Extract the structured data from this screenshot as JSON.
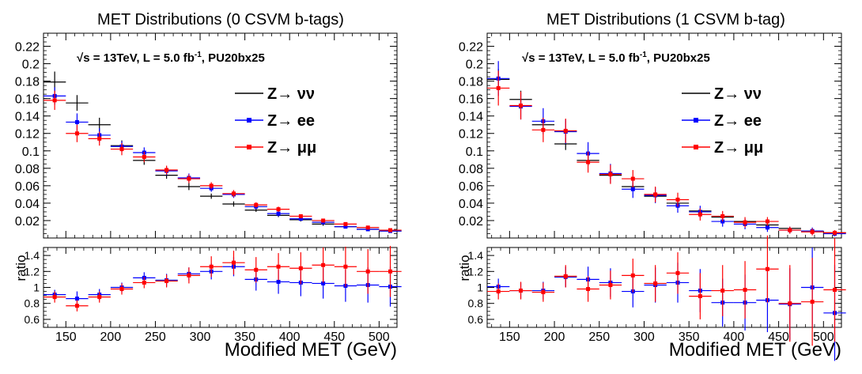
{
  "figure": {
    "xlabel": "Modified MET (GeV)"
  },
  "chart_data": [
    {
      "type": "scatter",
      "title": "MET Distributions (0 CSVM b-tags)",
      "annotation": {
        "main": "√s = 13TeV, L = 5.0 fb",
        "sup": "-1",
        "tail": ", PU20bx25"
      },
      "xlabel": "Modified MET (GeV)",
      "xlim": [
        125,
        520
      ],
      "x_ticks": [
        "150",
        "200",
        "250",
        "300",
        "350",
        "400",
        "450",
        "500"
      ],
      "upper": {
        "ylim": [
          0,
          0.235
        ],
        "y_ticks": [
          "0.02",
          "0.04",
          "0.06",
          "0.08",
          "0.1",
          "0.12",
          "0.14",
          "0.16",
          "0.18",
          "0.2",
          "0.22"
        ],
        "legend_position": "top-right",
        "x": [
          137.5,
          162.5,
          187.5,
          212.5,
          237.5,
          262.5,
          287.5,
          312.5,
          337.5,
          362.5,
          387.5,
          412.5,
          437.5,
          462.5,
          487.5,
          512.5
        ],
        "series": [
          {
            "name": "Z→ νν",
            "color": "#000000",
            "values": [
              0.179,
              0.155,
              0.13,
              0.106,
              0.089,
              0.072,
              0.059,
              0.048,
              0.039,
              0.032,
              0.026,
              0.021,
              0.016,
              0.013,
              0.01,
              0.008
            ],
            "errors": [
              0.012,
              0.009,
              0.008,
              0.006,
              0.005,
              0.004,
              0.004,
              0.003,
              0.003,
              0.002,
              0.002,
              0.002,
              0.002,
              0.001,
              0.001,
              0.001
            ]
          },
          {
            "name": "Z→ ee",
            "color": "#0000ff",
            "values": [
              0.163,
              0.133,
              0.118,
              0.105,
              0.098,
              0.077,
              0.069,
              0.057,
              0.05,
              0.036,
              0.028,
              0.022,
              0.018,
              0.013,
              0.01,
              0.008
            ],
            "errors": [
              0.01,
              0.01,
              0.008,
              0.006,
              0.006,
              0.005,
              0.005,
              0.004,
              0.004,
              0.003,
              0.003,
              0.002,
              0.002,
              0.002,
              0.001,
              0.001
            ]
          },
          {
            "name": "Z→ μμ",
            "color": "#ff0000",
            "values": [
              0.158,
              0.12,
              0.114,
              0.102,
              0.093,
              0.078,
              0.068,
              0.06,
              0.051,
              0.038,
              0.033,
              0.025,
              0.02,
              0.016,
              0.012,
              0.009
            ],
            "errors": [
              0.011,
              0.01,
              0.008,
              0.007,
              0.006,
              0.005,
              0.005,
              0.004,
              0.004,
              0.003,
              0.003,
              0.002,
              0.002,
              0.002,
              0.001,
              0.001
            ]
          }
        ]
      },
      "ratio": {
        "ylabel": "ratio",
        "ylim": [
          0.5,
          1.5
        ],
        "y_ticks": [
          "0.6",
          "0.8",
          "1",
          "1.2",
          "1.4"
        ],
        "series": [
          {
            "name": "Z→ ee",
            "color": "#0000ff",
            "values": [
              0.91,
              0.86,
              0.91,
              1.0,
              1.12,
              1.09,
              1.17,
              1.2,
              1.26,
              1.1,
              1.07,
              1.06,
              1.05,
              1.02,
              1.03,
              1.01
            ],
            "errors": [
              0.06,
              0.09,
              0.07,
              0.06,
              0.07,
              0.08,
              0.08,
              0.1,
              0.12,
              0.14,
              0.15,
              0.17,
              0.19,
              0.2,
              0.22,
              0.25
            ]
          },
          {
            "name": "Z→ μμ",
            "color": "#ff0000",
            "values": [
              0.88,
              0.77,
              0.88,
              0.98,
              1.06,
              1.08,
              1.15,
              1.26,
              1.31,
              1.22,
              1.26,
              1.24,
              1.28,
              1.26,
              1.2,
              1.2
            ],
            "errors": [
              0.07,
              0.07,
              0.07,
              0.07,
              0.07,
              0.08,
              0.1,
              0.13,
              0.15,
              0.16,
              0.17,
              0.2,
              0.22,
              0.25,
              0.28,
              0.32
            ]
          }
        ]
      }
    },
    {
      "type": "scatter",
      "title": "MET Distributions (1 CSVM b-tag)",
      "annotation": {
        "main": "√s = 13TeV, L = 5.0 fb",
        "sup": "-1",
        "tail": ", PU20bx25"
      },
      "xlabel": "Modified MET (GeV)",
      "xlim": [
        125,
        520
      ],
      "x_ticks": [
        "150",
        "200",
        "250",
        "300",
        "350",
        "400",
        "450",
        "500"
      ],
      "upper": {
        "ylim": [
          0,
          0.235
        ],
        "y_ticks": [
          "0.02",
          "0.04",
          "0.06",
          "0.08",
          "0.1",
          "0.12",
          "0.14",
          "0.16",
          "0.18",
          "0.2",
          "0.22"
        ],
        "legend_position": "top-right",
        "x": [
          137.5,
          162.5,
          187.5,
          212.5,
          237.5,
          262.5,
          287.5,
          312.5,
          337.5,
          362.5,
          387.5,
          412.5,
          437.5,
          462.5,
          487.5,
          512.5
        ],
        "series": [
          {
            "name": "Z→ νν",
            "color": "#000000",
            "values": [
              0.182,
              0.159,
              0.13,
              0.108,
              0.089,
              0.072,
              0.059,
              0.048,
              0.04,
              0.031,
              0.024,
              0.019,
              0.015,
              0.011,
              0.008,
              0.006
            ],
            "errors": [
              0.012,
              0.01,
              0.008,
              0.007,
              0.006,
              0.005,
              0.004,
              0.004,
              0.003,
              0.003,
              0.002,
              0.002,
              0.002,
              0.001,
              0.001,
              0.001
            ]
          },
          {
            "name": "Z→ ee",
            "color": "#0000ff",
            "values": [
              0.183,
              0.151,
              0.134,
              0.122,
              0.097,
              0.074,
              0.056,
              0.049,
              0.037,
              0.03,
              0.019,
              0.016,
              0.012,
              0.009,
              0.008,
              0.005
            ],
            "errors": [
              0.02,
              0.015,
              0.015,
              0.014,
              0.013,
              0.011,
              0.01,
              0.009,
              0.008,
              0.007,
              0.006,
              0.006,
              0.005,
              0.004,
              0.004,
              0.003
            ]
          },
          {
            "name": "Z→ μμ",
            "color": "#ff0000",
            "values": [
              0.172,
              0.152,
              0.124,
              0.123,
              0.087,
              0.073,
              0.068,
              0.05,
              0.044,
              0.027,
              0.025,
              0.018,
              0.019,
              0.009,
              0.007,
              0.006
            ],
            "errors": [
              0.02,
              0.016,
              0.014,
              0.014,
              0.012,
              0.011,
              0.01,
              0.009,
              0.008,
              0.007,
              0.006,
              0.006,
              0.005,
              0.004,
              0.004,
              0.003
            ]
          }
        ]
      },
      "ratio": {
        "ylabel": "ratio",
        "ylim": [
          0.5,
          1.5
        ],
        "y_ticks": [
          "0.6",
          "0.8",
          "1",
          "1.2",
          "1.4"
        ],
        "series": [
          {
            "name": "Z→ ee",
            "color": "#0000ff",
            "values": [
              1.01,
              0.96,
              0.96,
              1.13,
              1.1,
              1.06,
              0.95,
              1.03,
              1.06,
              0.96,
              0.81,
              0.81,
              0.84,
              0.79,
              1.0,
              0.68
            ],
            "errors": [
              0.1,
              0.1,
              0.11,
              0.13,
              0.16,
              0.18,
              0.2,
              0.22,
              0.25,
              0.27,
              0.3,
              0.35,
              0.4,
              0.45,
              0.5,
              0.6
            ]
          },
          {
            "name": "Z→ μμ",
            "color": "#ff0000",
            "values": [
              0.95,
              0.96,
              0.94,
              1.14,
              0.98,
              1.03,
              1.15,
              1.05,
              1.18,
              0.89,
              0.96,
              0.97,
              1.23,
              0.8,
              0.82,
              0.97
            ],
            "errors": [
              0.1,
              0.11,
              0.12,
              0.14,
              0.16,
              0.18,
              0.21,
              0.23,
              0.26,
              0.29,
              0.32,
              0.36,
              0.42,
              0.48,
              0.55,
              0.65
            ]
          }
        ]
      }
    }
  ]
}
